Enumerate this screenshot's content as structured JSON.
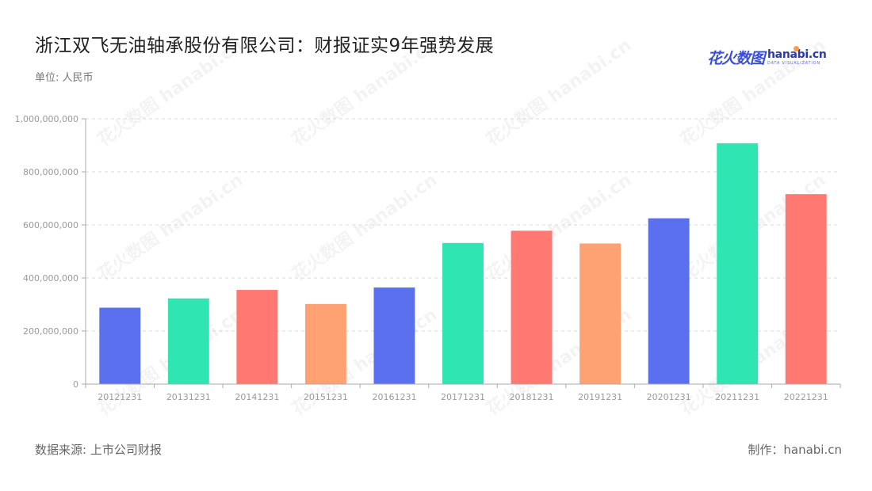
{
  "header": {
    "title": "浙江双飞无油轴承股份有限公司：财报证实9年强势发展",
    "unit_label": "单位: 人民币"
  },
  "logo": {
    "cn": "花火数图",
    "en": "hanabi.cn",
    "en_sub": "DATA VISUALIZATION"
  },
  "watermark": {
    "text": "花火数图 hanabi.cn"
  },
  "footer": {
    "source": "数据来源: 上市公司财报",
    "credit": "制作：hanabi.cn"
  },
  "chart_data": {
    "type": "bar",
    "title": "浙江双飞无油轴承股份有限公司：财报证实9年强势发展",
    "xlabel": "",
    "ylabel": "",
    "categories": [
      "20121231",
      "20131231",
      "20141231",
      "20151231",
      "20161231",
      "20171231",
      "20181231",
      "20191231",
      "20201231",
      "20211231",
      "20221231"
    ],
    "values": [
      288000000,
      323000000,
      355000000,
      302000000,
      364000000,
      532000000,
      578000000,
      530000000,
      625000000,
      908000000,
      716000000
    ],
    "ylim": [
      0,
      1000000000
    ],
    "yticks": [
      0,
      200000000,
      400000000,
      600000000,
      800000000,
      1000000000
    ],
    "ytick_labels": [
      "0",
      "200,000,000",
      "400,000,000",
      "600,000,000",
      "800,000,000",
      "1,000,000,000"
    ],
    "bar_colors": [
      "#5a70ee",
      "#2fe6b3",
      "#ff7871",
      "#ffa273",
      "#5a70ee",
      "#2fe6b3",
      "#ff7871",
      "#ffa273",
      "#5a70ee",
      "#2fe6b3",
      "#ff7871"
    ],
    "grid": true,
    "legend": "none"
  }
}
